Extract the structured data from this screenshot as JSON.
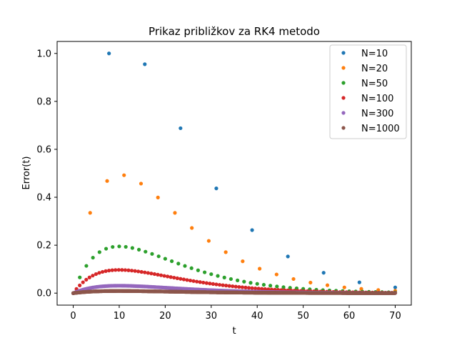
{
  "chart_data": {
    "type": "scatter",
    "title": "Prikaz približkov za RK4 metodo",
    "xlabel": "t",
    "ylabel": "Error(t)",
    "xlim": [
      -3.5,
      73.5
    ],
    "ylim": [
      -0.05,
      1.05
    ],
    "xticks": [
      0,
      10,
      20,
      30,
      40,
      50,
      60,
      70
    ],
    "yticks": [
      0.0,
      0.2,
      0.4,
      0.6,
      0.8,
      1.0
    ],
    "xtick_labels": [
      "0",
      "10",
      "20",
      "30",
      "40",
      "50",
      "60",
      "70"
    ],
    "ytick_labels": [
      "0.0",
      "0.2",
      "0.4",
      "0.6",
      "0.8",
      "1.0"
    ],
    "grid": false,
    "legend_position": "top-right",
    "series": [
      {
        "name": "N=10",
        "color": "#1f77b4",
        "x": [
          0,
          7.78,
          15.56,
          23.33,
          31.11,
          38.89,
          46.67,
          54.44,
          62.22,
          70.0
        ],
        "y": [
          0.0,
          1.0,
          0.955,
          0.688,
          0.437,
          0.263,
          0.153,
          0.085,
          0.045,
          0.024
        ]
      },
      {
        "name": "N=20",
        "color": "#ff7f0e",
        "x": [
          0,
          3.68,
          7.37,
          11.05,
          14.74,
          18.42,
          22.11,
          25.79,
          29.47,
          33.16,
          36.84,
          40.53,
          44.21,
          47.89,
          51.58,
          55.26,
          58.95,
          62.63,
          66.32,
          70.0
        ],
        "y": [
          0.0,
          0.335,
          0.468,
          0.492,
          0.457,
          0.399,
          0.335,
          0.272,
          0.218,
          0.171,
          0.133,
          0.102,
          0.078,
          0.059,
          0.044,
          0.033,
          0.024,
          0.018,
          0.013,
          0.01
        ]
      },
      {
        "name": "N=50",
        "color": "#2ca02c",
        "peak": 0.195,
        "peak_t": 10.0,
        "count": 50
      },
      {
        "name": "N=100",
        "color": "#d62728",
        "peak": 0.097,
        "peak_t": 10.0,
        "count": 100
      },
      {
        "name": "N=300",
        "color": "#9467bd",
        "peak": 0.031,
        "peak_t": 10.0,
        "count": 300
      },
      {
        "name": "N=1000",
        "color": "#8c564b",
        "peak": 0.009,
        "peak_t": 10.0,
        "count": 1000
      }
    ]
  }
}
